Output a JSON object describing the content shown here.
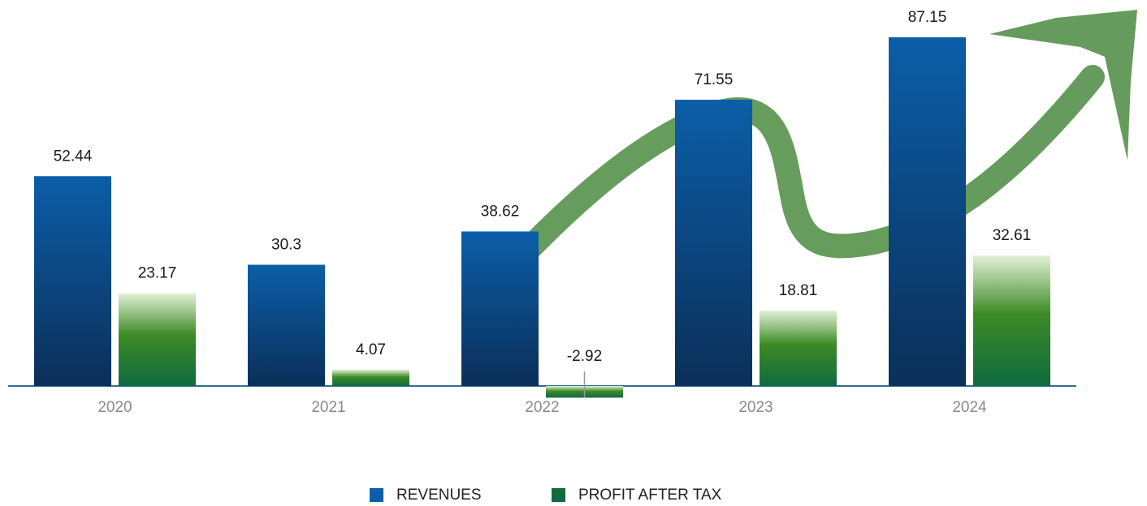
{
  "chart_data": {
    "type": "bar",
    "categories": [
      "2020",
      "2021",
      "2022",
      "2023",
      "2024"
    ],
    "series": [
      {
        "name": "REVENUES",
        "color": "#0b5ea8",
        "values": [
          52.44,
          30.3,
          38.62,
          71.55,
          87.15
        ]
      },
      {
        "name": "PROFIT AFTER TAX",
        "color": "#0f6b3f",
        "values": [
          23.17,
          4.07,
          -2.92,
          18.81,
          32.61
        ]
      }
    ]
  }
}
